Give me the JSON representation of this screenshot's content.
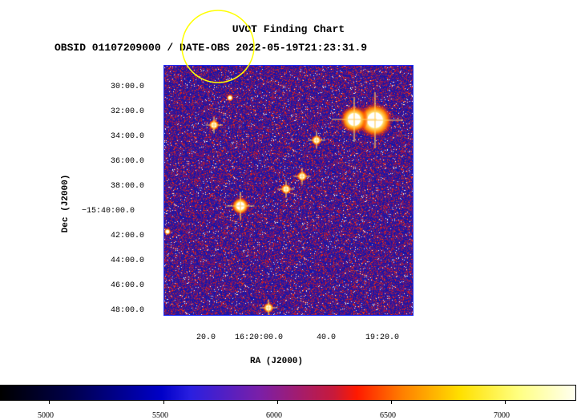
{
  "title": "UVOT Finding Chart",
  "subtitle": "OBSID 01107209000 / DATE-OBS 2022-05-19T21:23:31.9",
  "axes": {
    "ylabel": "Dec (J2000)",
    "xlabel": "RA (J2000)",
    "yticks": [
      "30:00.0",
      "32:00.0",
      "34:00.0",
      "36:00.0",
      "38:00.0",
      "−15:40:00.0",
      "42:00.0",
      "44:00.0",
      "46:00.0",
      "48:00.0"
    ],
    "xticks": [
      "20.0",
      "16:20:00.0",
      "40.0",
      "19:20.0"
    ]
  },
  "colorbar": {
    "ticks": [
      "5000",
      "5500",
      "6000",
      "6500",
      "7000"
    ],
    "colors": [
      "#000000",
      "#0000c8",
      "#7a1fa8",
      "#ff1a00",
      "#ffe000",
      "#fffff0"
    ]
  },
  "overlay": {
    "circle_color": "#ffff00"
  }
}
